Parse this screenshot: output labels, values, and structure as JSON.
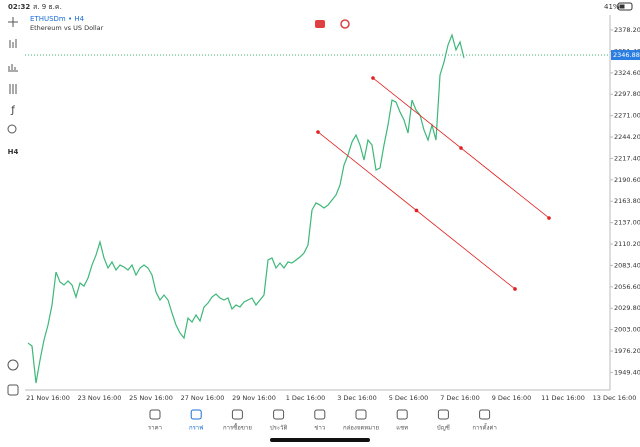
{
  "status_bar": {
    "time": "02:32",
    "date": "ส. 9 ธ.ค.",
    "battery": "41%"
  },
  "header": {
    "symbol": "ETHUSDm • H4",
    "description": "Ethereum vs US Dollar"
  },
  "toolbar": {
    "timeframe": "H4",
    "function": "ƒ"
  },
  "chart_data": {
    "type": "line",
    "color": "#3cb878",
    "values": [
      1986.2,
      1982.5,
      1936.1,
      1964.9,
      1990.0,
      2008.8,
      2033.8,
      2075.1,
      2062.6,
      2058.9,
      2063.9,
      2058.9,
      2043.8,
      2061.4,
      2057.6,
      2067.6,
      2083.9,
      2096.4,
      2112.7,
      2092.7,
      2080.2,
      2087.7,
      2077.6,
      2083.9,
      2081.4,
      2077.6,
      2083.9,
      2071.4,
      2080.2,
      2083.9,
      2080.2,
      2071.4,
      2050.1,
      2040.1,
      2046.3,
      2040.1,
      2023.8,
      2008.8,
      1998.8,
      1992.5,
      2017.5,
      2012.5,
      2021.3,
      2013.8,
      2031.3,
      2036.3,
      2043.8,
      2047.6,
      2042.6,
      2040.1,
      2042.6,
      2028.8,
      2033.8,
      2031.3,
      2037.6,
      2040.1,
      2042.6,
      2033.8,
      2040.1,
      2046.3,
      2090.2,
      2092.7,
      2080.2,
      2086.4,
      2080.2,
      2087.7,
      2086.4,
      2090.2,
      2093.9,
      2098.9,
      2109.0,
      2152.8,
      2161.6,
      2159.0,
      2155.3,
      2159.0,
      2165.3,
      2171.6,
      2184.1,
      2209.1,
      2221.7,
      2237.9,
      2246.7,
      2234.2,
      2215.4,
      2240.4,
      2234.2,
      2202.9,
      2205.4,
      2234.2,
      2259.2,
      2290.5,
      2288.0,
      2275.5,
      2265.5,
      2249.2,
      2290.5,
      2278.0,
      2271.8,
      2253.0,
      2240.4,
      2259.2,
      2240.4,
      2321.8,
      2338.1,
      2359.4,
      2371.9,
      2353.2,
      2363.2,
      2343.1
    ],
    "ylim": [
      1927.4,
      2397.0
    ],
    "yticks": [
      {
        "value": 2378.2,
        "label": "2378.20"
      },
      {
        "value": 2351.4,
        "label": "2351.40"
      },
      {
        "value": 2324.6,
        "label": "2324.60"
      },
      {
        "value": 2297.8,
        "label": "2297.80"
      },
      {
        "value": 2271.0,
        "label": "2271.00"
      },
      {
        "value": 2244.2,
        "label": "2244.20"
      },
      {
        "value": 2217.4,
        "label": "2217.40"
      },
      {
        "value": 2190.6,
        "label": "2190.60"
      },
      {
        "value": 2163.8,
        "label": "2163.80"
      },
      {
        "value": 2137.0,
        "label": "2137.00"
      },
      {
        "value": 2110.2,
        "label": "2110.20"
      },
      {
        "value": 2083.4,
        "label": "2083.40"
      },
      {
        "value": 2056.6,
        "label": "2056.60"
      },
      {
        "value": 2029.8,
        "label": "2029.80"
      },
      {
        "value": 2003.0,
        "label": "2003.00"
      },
      {
        "value": 1976.2,
        "label": "1976.20"
      },
      {
        "value": 1949.4,
        "label": "1949.40"
      }
    ],
    "x_labels": [
      "21 Nov 16:00",
      "23 Nov 16:00",
      "25 Nov 16:00",
      "27 Nov 16:00",
      "29 Nov 16:00",
      "1 Dec 16:00",
      "3 Dec 16:00",
      "5 Dec 16:00",
      "7 Dec 16:00",
      "9 Dec 16:00",
      "11 Dec 16:00",
      "13 Dec 16:00"
    ],
    "last_price": {
      "value": 2346.88,
      "label": "2346.88"
    },
    "trend_lines": [
      {
        "color": "#e02020",
        "x": [
          86.25,
          130.25
        ],
        "y": [
          2318.1,
          2142.8
        ]
      },
      {
        "color": "#e02020",
        "x": [
          72.5,
          121.75
        ],
        "y": [
          2250.5,
          2053.9
        ]
      }
    ]
  },
  "tab_bar": {
    "active": 1,
    "tabs": [
      "ราคา",
      "กราฟ",
      "การซื้อขาย",
      "ประวัติ",
      "ข่าว",
      "กล่องจดหมาย",
      "แชท",
      "บัญชี",
      "การตั้งค่า"
    ]
  }
}
